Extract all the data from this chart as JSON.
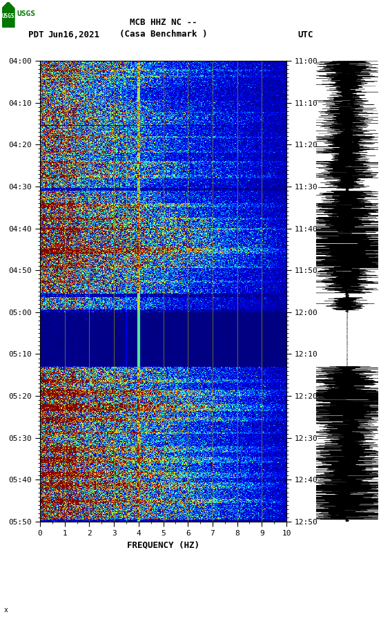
{
  "title_line1": "MCB HHZ NC --",
  "title_line2": "(Casa Benchmark )",
  "date_label": "Jun16,2021",
  "pdt_label": "PDT",
  "utc_label": "UTC",
  "freq_min": 0,
  "freq_max": 10,
  "pdt_ticks": [
    "04:00",
    "04:10",
    "04:20",
    "04:30",
    "04:40",
    "04:50",
    "05:00",
    "05:10",
    "05:20",
    "05:30",
    "05:40",
    "05:50"
  ],
  "utc_ticks": [
    "11:00",
    "11:10",
    "11:20",
    "11:30",
    "11:40",
    "11:50",
    "12:00",
    "12:10",
    "12:20",
    "12:30",
    "12:40",
    "12:50"
  ],
  "freq_ticks": [
    0,
    1,
    2,
    3,
    4,
    5,
    6,
    7,
    8,
    9,
    10
  ],
  "freq_label": "FREQUENCY (HZ)",
  "bg_color": "#ffffff",
  "grid_line_color": "#888800",
  "logo_green": "#007700"
}
